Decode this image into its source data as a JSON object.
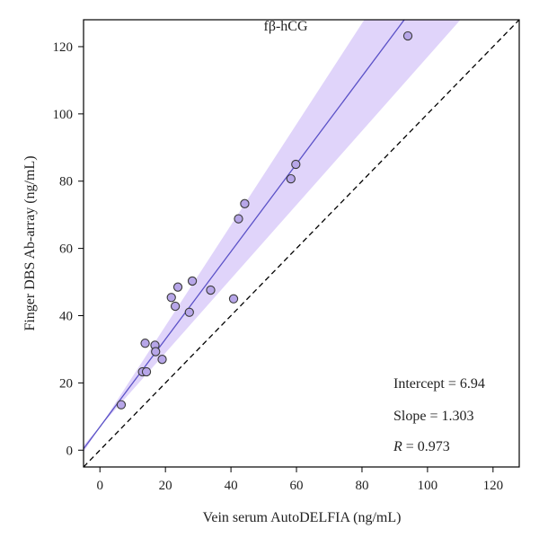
{
  "chart_data": {
    "type": "scatter",
    "title": "fβ-hCG",
    "xlabel": "Vein serum AutoDELFIA (ng/mL)",
    "ylabel": "Finger DBS Ab-array (ng/mL)",
    "xlim": [
      -5,
      128
    ],
    "ylim": [
      -5,
      128
    ],
    "xticks": [
      0,
      20,
      40,
      60,
      80,
      100,
      120
    ],
    "yticks": [
      0,
      20,
      40,
      60,
      80,
      100,
      120
    ],
    "grid": false,
    "points": [
      {
        "x": 6.5,
        "y": 13.5
      },
      {
        "x": 13,
        "y": 23.3
      },
      {
        "x": 14.2,
        "y": 23.3
      },
      {
        "x": 13.8,
        "y": 31.8
      },
      {
        "x": 16.8,
        "y": 31.2
      },
      {
        "x": 17,
        "y": 29.3
      },
      {
        "x": 19,
        "y": 27
      },
      {
        "x": 21.8,
        "y": 45.4
      },
      {
        "x": 23,
        "y": 42.8
      },
      {
        "x": 23.8,
        "y": 48.5
      },
      {
        "x": 27.3,
        "y": 41
      },
      {
        "x": 28.2,
        "y": 50.3
      },
      {
        "x": 33.8,
        "y": 47.6
      },
      {
        "x": 40.8,
        "y": 45
      },
      {
        "x": 42.3,
        "y": 68.8
      },
      {
        "x": 44.2,
        "y": 73.3
      },
      {
        "x": 58.3,
        "y": 80.7
      },
      {
        "x": 59.8,
        "y": 85
      },
      {
        "x": 94,
        "y": 123.2
      }
    ],
    "fit": {
      "intercept": 6.94,
      "slope": 1.303
    },
    "identity_line": true,
    "confidence_band": {
      "lower_slope": 1.1,
      "upper_slope": 1.5
    },
    "annotations": {
      "intercept": "Intercept = 6.94",
      "slope": "Slope = 1.303",
      "r_label": "R",
      "r_value": " = 0.973"
    },
    "colors": {
      "band": "#e0d4fa",
      "fit_line": "#5b52c7",
      "point_fill": "#b7a6e8",
      "point_stroke": "#3a3a3a",
      "identity_line": "#000000",
      "axis": "#000000"
    }
  }
}
